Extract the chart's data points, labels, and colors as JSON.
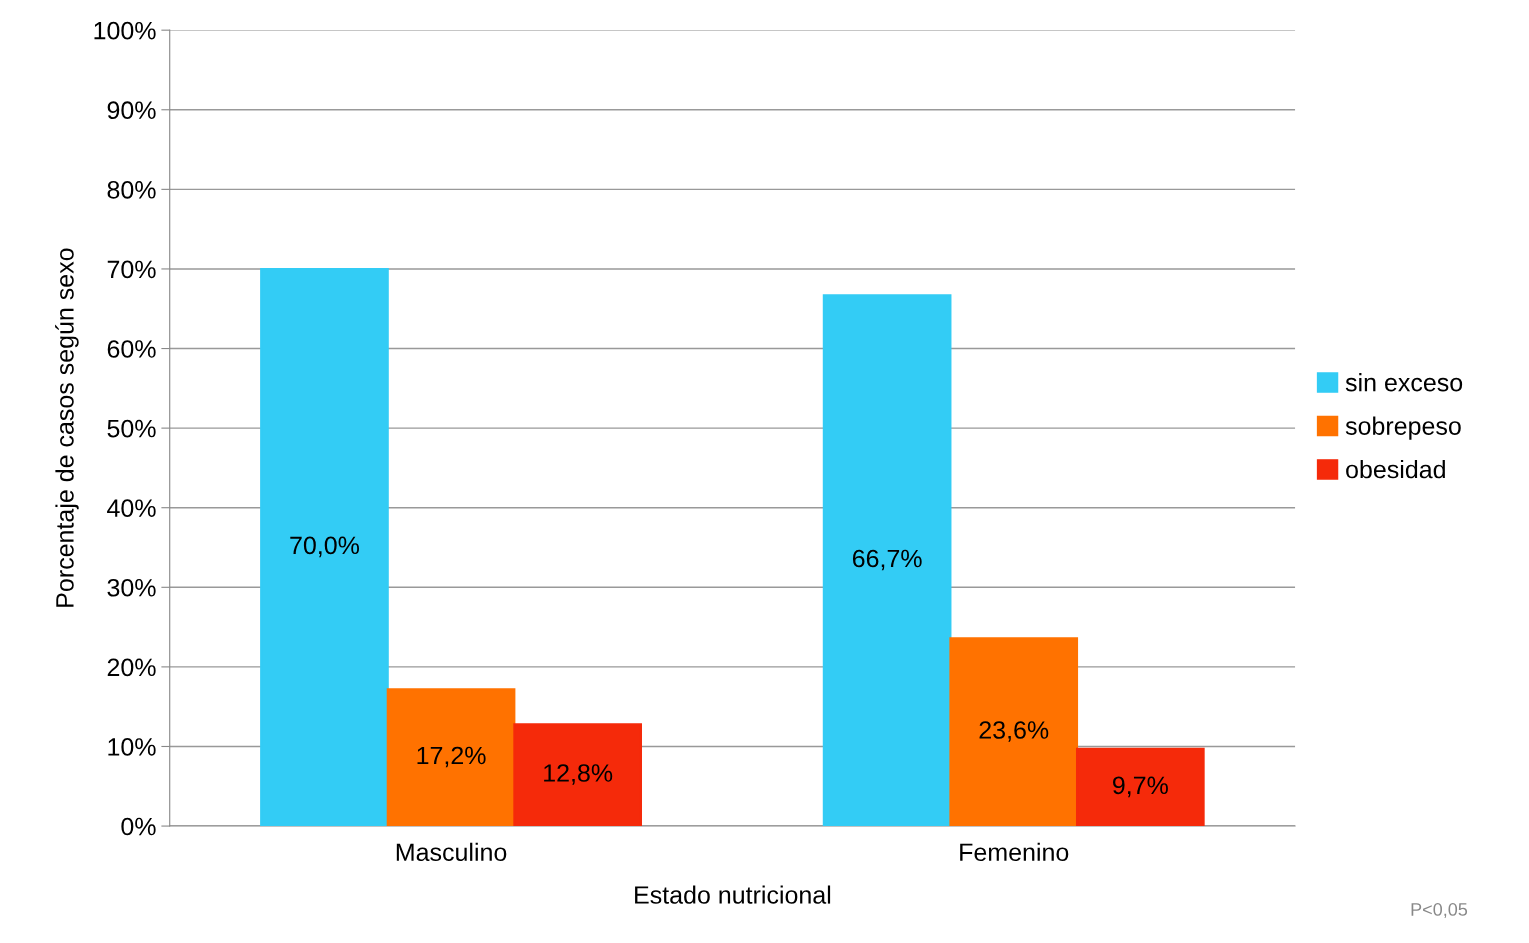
{
  "chart_data": {
    "type": "bar",
    "xlabel": "Estado nutricional",
    "ylabel": "Porcentaje de casos según sexo",
    "categories": [
      "Masculino",
      "Femenino"
    ],
    "series": [
      {
        "name": "sin exceso",
        "color": "#33ccf5",
        "values": [
          70.0,
          66.7
        ],
        "value_labels": [
          "70,0%",
          "66,7%"
        ]
      },
      {
        "name": "sobrepeso",
        "color": "#ff7200",
        "values": [
          17.2,
          23.6
        ],
        "value_labels": [
          "17,2%",
          "23,6%"
        ]
      },
      {
        "name": "obesidad",
        "color": "#f52a0a",
        "values": [
          12.8,
          9.7
        ],
        "value_labels": [
          "12,8%",
          "9,7%"
        ]
      }
    ],
    "ylim": [
      0,
      100
    ],
    "yticks": [
      {
        "value": 0,
        "label": "0%"
      },
      {
        "value": 10,
        "label": "10%"
      },
      {
        "value": 20,
        "label": "20%"
      },
      {
        "value": 30,
        "label": "30%"
      },
      {
        "value": 40,
        "label": "40%"
      },
      {
        "value": 50,
        "label": "50%"
      },
      {
        "value": 60,
        "label": "60%"
      },
      {
        "value": 70,
        "label": "70%"
      },
      {
        "value": 80,
        "label": "80%"
      },
      {
        "value": 90,
        "label": "90%"
      },
      {
        "value": 100,
        "label": "100%"
      }
    ],
    "grid": "y",
    "legend": "right",
    "annotations": [
      "P<0,05"
    ]
  }
}
